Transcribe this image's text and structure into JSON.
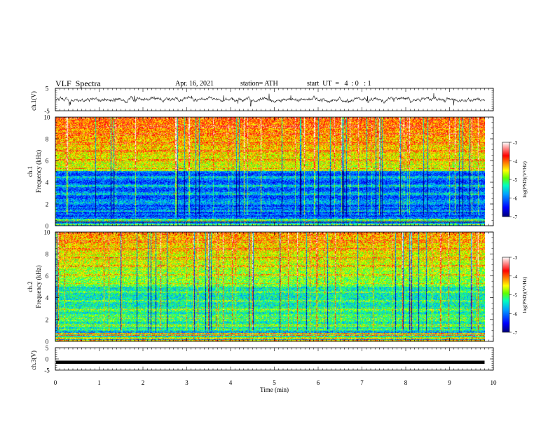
{
  "header": {
    "title": "VLF  Spectra",
    "date": "Apr. 16, 2021",
    "station": "station= ATH",
    "start": "start  UT  =   4  : 0   : 1"
  },
  "chart_data": [
    {
      "type": "line",
      "panel": "ch1-waveform",
      "ylabel": "ch.1(V)",
      "yticks": [
        "5",
        "-5"
      ],
      "ylim": [
        -5,
        5
      ],
      "x_range": [
        0,
        9.8
      ],
      "series": [
        {
          "values_description_free": true
        }
      ]
    },
    {
      "type": "heatmap",
      "panel": "ch1-spectrogram",
      "ylabel_lines": [
        "ch.1",
        "Frequency  (kHz)"
      ],
      "yticks": [
        "0",
        "2",
        "4",
        "6",
        "8",
        "10"
      ],
      "ylim": [
        0,
        10
      ],
      "colorbar": {
        "label": "log(PSD)(V²/Hz)",
        "ticks": [
          "-3",
          "-4",
          "-5",
          "-6",
          "-7"
        ],
        "range": [
          -7,
          -3
        ]
      }
    },
    {
      "type": "heatmap",
      "panel": "ch2-spectrogram",
      "ylabel_lines": [
        "ch.2",
        "Frequency  (kHz)"
      ],
      "yticks": [
        "0",
        "2",
        "4",
        "6",
        "8",
        "10"
      ],
      "ylim": [
        0,
        10
      ],
      "colorbar": {
        "label": "log(PSD)(V²/Hz)",
        "ticks": [
          "-3",
          "-4",
          "-5",
          "-6",
          "-7"
        ],
        "range": [
          -7,
          -3
        ]
      }
    },
    {
      "type": "line",
      "panel": "ch3-waveform",
      "ylabel": "ch.3(V)",
      "yticks": [
        "5",
        "0",
        "-5"
      ],
      "ylim": [
        -5,
        5
      ],
      "series": [
        {
          "values": [
            -1.5,
            -1.5
          ]
        }
      ]
    }
  ],
  "xaxis": {
    "label": "Time  (min)",
    "ticks": [
      "0",
      "1",
      "2",
      "3",
      "4",
      "5",
      "6",
      "7",
      "8",
      "9",
      "10"
    ],
    "range": [
      0,
      10
    ]
  },
  "colors": {
    "axis": "#000000",
    "trace": "#1a1a1a",
    "colormap": [
      "#000078",
      "#0000ff",
      "#00a0ff",
      "#00ffc0",
      "#60ff00",
      "#ffff00",
      "#ff8000",
      "#ff0000",
      "#ffffff"
    ]
  }
}
